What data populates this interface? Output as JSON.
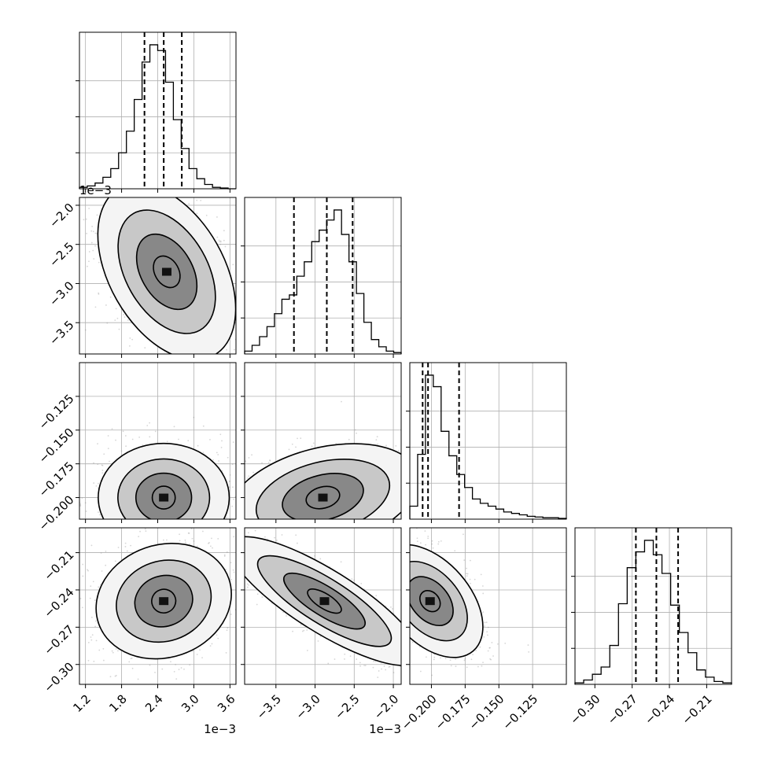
{
  "chart_data": {
    "type": "corner",
    "params": [
      {
        "range": [
          1.1,
          3.7
        ],
        "ticks": [
          1.2,
          1.8,
          2.4,
          3.0,
          3.6
        ],
        "labels": [
          "1.2",
          "1.8",
          "2.4",
          "3.0",
          "3.6"
        ],
        "offset": "1e−3"
      },
      {
        "range": [
          -3.9,
          -1.9
        ],
        "ticks": [
          -3.5,
          -3.0,
          -2.5,
          -2.0
        ],
        "labels": [
          "−3.5",
          "−3.0",
          "−2.5",
          "−2.0"
        ],
        "offset": "1e−3"
      },
      {
        "range": [
          -0.216,
          -0.1
        ],
        "ticks": [
          -0.2,
          -0.175,
          -0.15,
          -0.125
        ],
        "labels": [
          "−0.200",
          "−0.175",
          "−0.150",
          "−0.125"
        ],
        "offset": ""
      },
      {
        "range": [
          -0.316,
          -0.19
        ],
        "ticks": [
          -0.3,
          -0.27,
          -0.24,
          -0.21
        ],
        "labels": [
          "−0.30",
          "−0.27",
          "−0.24",
          "−0.21"
        ],
        "offset": ""
      }
    ],
    "ylabels_override": {
      "3": [
        "−0.30",
        "−0.27",
        "−0.24",
        "−0.21"
      ]
    },
    "marginals": [
      {
        "quantiles": [
          2.18,
          2.5,
          2.8
        ],
        "counts": [
          0.01,
          0.02,
          0.04,
          0.08,
          0.14,
          0.25,
          0.4,
          0.62,
          0.88,
          1.0,
          0.96,
          0.74,
          0.48,
          0.28,
          0.14,
          0.07,
          0.03,
          0.01,
          0.005,
          0.0
        ]
      },
      {
        "quantiles": [
          -3.27,
          -2.85,
          -2.52
        ],
        "counts": [
          0.02,
          0.06,
          0.12,
          0.19,
          0.28,
          0.38,
          0.41,
          0.54,
          0.64,
          0.78,
          0.86,
          0.93,
          1.0,
          0.83,
          0.64,
          0.42,
          0.22,
          0.1,
          0.05,
          0.02,
          0.01
        ]
      },
      {
        "quantiles": [
          -0.2065,
          -0.2025,
          -0.1795
        ],
        "counts": [
          0.09,
          0.45,
          1.0,
          0.92,
          0.61,
          0.44,
          0.31,
          0.22,
          0.14,
          0.11,
          0.09,
          0.07,
          0.05,
          0.04,
          0.03,
          0.02,
          0.015,
          0.01,
          0.01,
          0.005
        ]
      },
      {
        "quantiles": [
          -0.267,
          -0.2505,
          -0.233
        ],
        "counts": [
          0.01,
          0.03,
          0.07,
          0.12,
          0.27,
          0.56,
          0.81,
          0.92,
          1.0,
          0.9,
          0.77,
          0.55,
          0.36,
          0.22,
          0.1,
          0.05,
          0.02,
          0.01
        ]
      }
    ],
    "joint": [
      {
        "i": 1,
        "j": 0,
        "mean": [
          2.55,
          -2.85
        ],
        "std": [
          0.35,
          0.35
        ],
        "rho": -0.45
      },
      {
        "i": 2,
        "j": 0,
        "mean": [
          2.5,
          -0.2
        ],
        "std": [
          0.34,
          0.012
        ],
        "rho": 0.0
      },
      {
        "i": 2,
        "j": 1,
        "mean": [
          -2.9,
          -0.2
        ],
        "std": [
          0.38,
          0.012
        ],
        "rho": 0.35
      },
      {
        "i": 3,
        "j": 0,
        "mean": [
          2.5,
          -0.249
        ],
        "std": [
          0.35,
          0.014
        ],
        "rho": 0.15
      },
      {
        "i": 3,
        "j": 1,
        "mean": [
          -2.88,
          -0.249
        ],
        "std": [
          0.38,
          0.016
        ],
        "rho": -0.85
      },
      {
        "i": 3,
        "j": 2,
        "mean": [
          -0.201,
          -0.249
        ],
        "std": [
          0.012,
          0.014
        ],
        "rho": -0.5
      }
    ],
    "grid": true
  }
}
